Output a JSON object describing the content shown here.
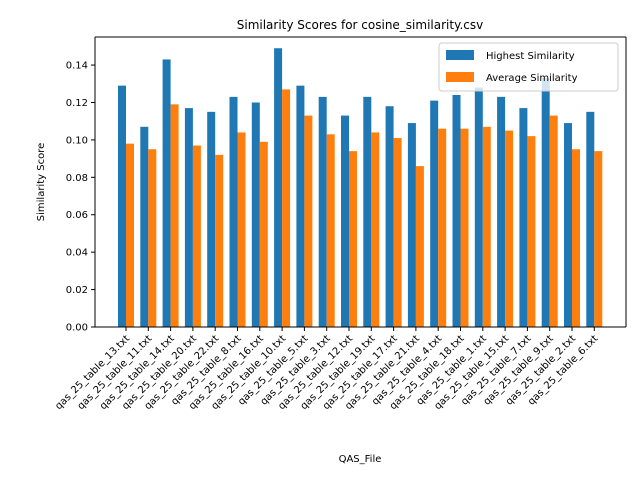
{
  "chart_data": {
    "type": "bar",
    "title": "Similarity Scores for cosine_similarity.csv",
    "xlabel": "QAS_File",
    "ylabel": "Similarity Score",
    "ylim": [
      0,
      0.155
    ],
    "yticks": [
      0.0,
      0.02,
      0.04,
      0.06,
      0.08,
      0.1,
      0.12,
      0.14
    ],
    "ytick_labels": [
      "0.00",
      "0.02",
      "0.04",
      "0.06",
      "0.08",
      "0.10",
      "0.12",
      "0.14"
    ],
    "legend_position": "top-right",
    "grid": false,
    "categories": [
      "qas_25_table_13.txt",
      "qas_25_table_11.txt",
      "qas_25_table_14.txt",
      "qas_25_table_20.txt",
      "qas_25_table_22.txt",
      "qas_25_table_8.txt",
      "qas_25_table_16.txt",
      "qas_25_table_10.txt",
      "qas_25_table_5.txt",
      "qas_25_table_3.txt",
      "qas_25_table_12.txt",
      "qas_25_table_19.txt",
      "qas_25_table_17.txt",
      "qas_25_table_21.txt",
      "qas_25_table_4.txt",
      "qas_25_table_18.txt",
      "qas_25_table_1.txt",
      "qas_25_table_15.txt",
      "qas_25_table_7.txt",
      "qas_25_table_9.txt",
      "qas_25_table_2.txt",
      "qas_25_table_6.txt"
    ],
    "series": [
      {
        "name": "Highest Similarity",
        "color": "#1f77b4",
        "values": [
          0.129,
          0.107,
          0.143,
          0.117,
          0.115,
          0.123,
          0.12,
          0.149,
          0.129,
          0.123,
          0.113,
          0.123,
          0.118,
          0.109,
          0.121,
          0.124,
          0.128,
          0.123,
          0.117,
          0.133,
          0.109,
          0.115
        ]
      },
      {
        "name": "Average Similarity",
        "color": "#ff7f0e",
        "values": [
          0.098,
          0.095,
          0.119,
          0.097,
          0.092,
          0.104,
          0.099,
          0.127,
          0.113,
          0.103,
          0.094,
          0.104,
          0.101,
          0.086,
          0.106,
          0.106,
          0.107,
          0.105,
          0.102,
          0.113,
          0.095,
          0.094
        ]
      }
    ]
  }
}
